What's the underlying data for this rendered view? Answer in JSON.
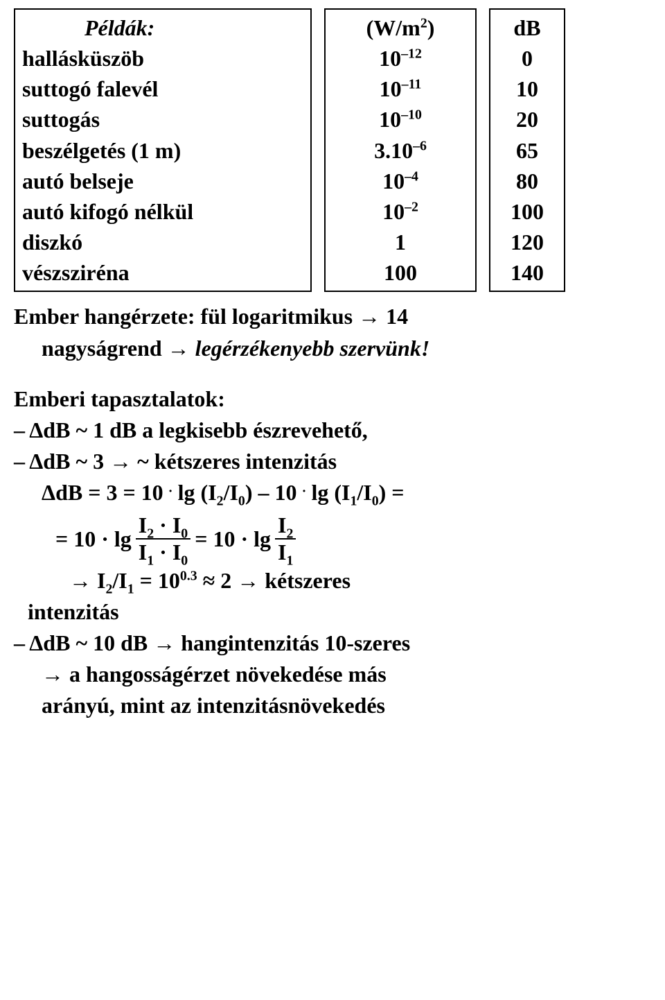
{
  "table": {
    "headers": {
      "labels": "Példák:",
      "wm": "(W/m",
      "wm_exp": "2",
      "wm_close": ")",
      "db": "dB"
    },
    "rows": [
      {
        "label": "hallásküszöb",
        "wm_base": "10",
        "wm_exp": "–12",
        "db": "0"
      },
      {
        "label": "suttogó falevél",
        "wm_base": "10",
        "wm_exp": "–11",
        "db": "10"
      },
      {
        "label": "suttogás",
        "wm_base": "10",
        "wm_exp": "–10",
        "db": "20"
      },
      {
        "label": "beszélgetés (1 m)",
        "wm_base": "3.10",
        "wm_exp": "–6",
        "db": "65"
      },
      {
        "label": "autó belseje",
        "wm_base": "10",
        "wm_exp": "–4",
        "db": "80"
      },
      {
        "label": "autó kifogó nélkül",
        "wm_base": "10",
        "wm_exp": "–2",
        "db": "100"
      },
      {
        "label": "diszkó",
        "wm_base": "1",
        "wm_exp": "",
        "db": "120"
      },
      {
        "label": "vészsziréna",
        "wm_base": "100",
        "wm_exp": "",
        "db": "140"
      }
    ]
  },
  "body": {
    "l1a": "Ember hangérzete: fül logaritmikus → 14",
    "l1b": "nagyságrend → ",
    "l1c": "legérzékenyebb szervünk!",
    "exp_title": "Emberi tapasztalatok:",
    "b1": "– ΔdB ~ 1 dB a legkisebb észrevehető,",
    "b2": "– ΔdB ~ 3 → ~ kétszeres intenzitás",
    "eq1a": "ΔdB = 3 = 10 ",
    "eq1b": " lg (I",
    "eq1b_s": "2",
    "eq1c": "/I",
    "eq1c_s": "0",
    "eq1d": ") – 10 ",
    "eq1e": " lg (I",
    "eq1e_s": "1",
    "eq1f": "/I",
    "eq1f_s": "0",
    "eq1g": ") =",
    "frac": {
      "pre": "= 10 · lg",
      "n1a": "I",
      "n1a_s": "2",
      "n1b": " · I",
      "n1b_s": "0",
      "d1a": "I",
      "d1a_s": "1",
      "d1b": " · I",
      "d1b_s": "0",
      "mid": " = 10 · lg",
      "n2": "I",
      "n2_s": "2",
      "d2": "I",
      "d2_s": "1"
    },
    "res1a": "→ I",
    "res1a_s": "2",
    "res1b": "/I",
    "res1b_s": "1",
    "res1c": " = 10",
    "res1c_sup": "0.3",
    "res1d": " ≈ 2 → kétszeres",
    "res2": "intenzitás",
    "b3": "– ΔdB ~ 10 dB → hangintenzitás 10-szeres",
    "b3b": "→ a hangosságérzet növekedése más",
    "b3c": "arányú, mint az intenzitásnövekedés",
    "dot": "."
  }
}
